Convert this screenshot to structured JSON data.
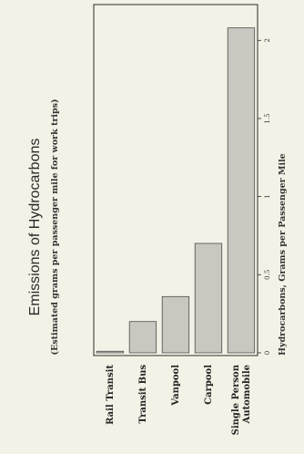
{
  "chart_data": {
    "type": "bar",
    "orientation": "horizontal",
    "title": "Emissions of Hydrocarbons",
    "subtitle": "(Estimated grams per passenger mile for work trips)",
    "xlabel": "Hydrocarbons, Grams per Passenger Mile",
    "categories": [
      "Rail Transit",
      "Transit Bus",
      "Vanpool",
      "Carpool",
      "Single Person Automobile"
    ],
    "category_lines": [
      [
        "Rail Transit"
      ],
      [
        "Transit Bus"
      ],
      [
        "Vanpool"
      ],
      [
        "Carpool"
      ],
      [
        "Single Person",
        "Automobile"
      ]
    ],
    "values": [
      0.01,
      0.2,
      0.36,
      0.7,
      2.08
    ],
    "xlim": [
      0,
      2.2
    ],
    "ticks": [
      0,
      0.5,
      1,
      1.5,
      2
    ],
    "tick_labels": [
      "0",
      "0.5",
      "1",
      "1.5",
      "2"
    ],
    "grid": false,
    "legend": "none",
    "colors": {
      "bar_fill": "#c9c8c0",
      "bar_stroke": "#4a4a4a",
      "frame": "#2a2a2a"
    }
  }
}
